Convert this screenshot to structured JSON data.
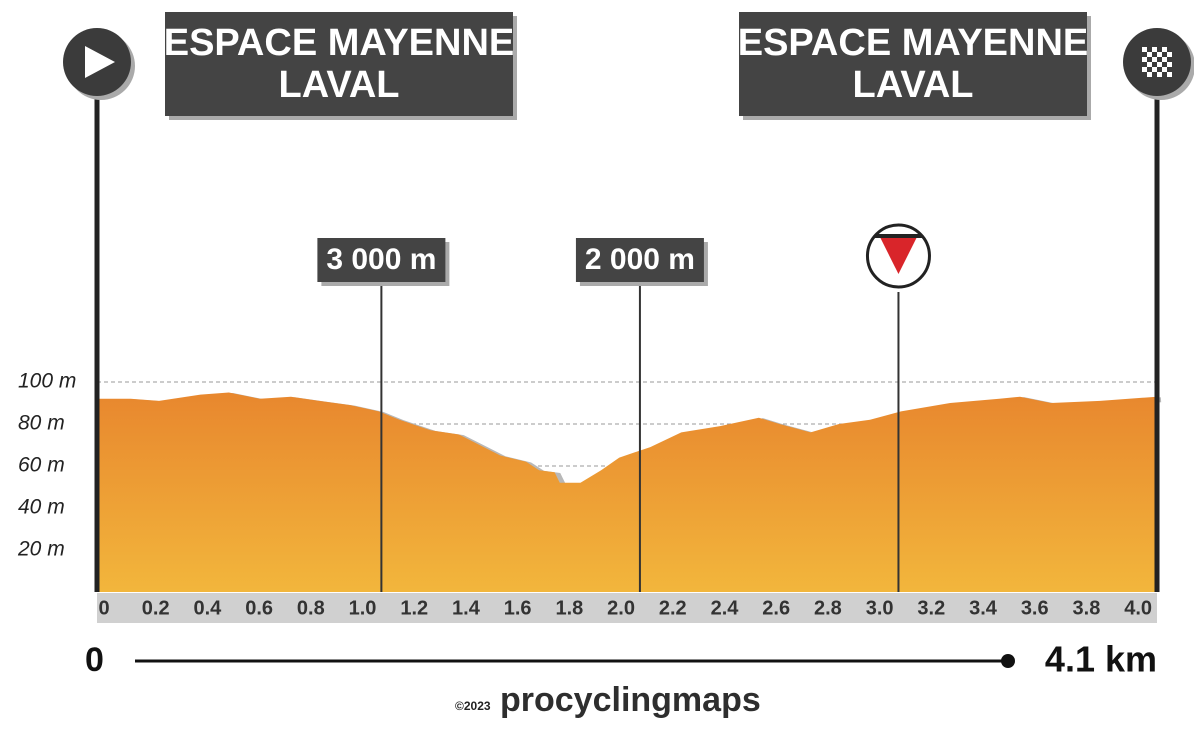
{
  "chart_data": {
    "type": "area",
    "start_label": [
      "ESPACE MAYENNE",
      "LAVAL"
    ],
    "finish_label": [
      "ESPACE MAYENNE",
      "LAVAL"
    ],
    "x": [
      0,
      0.13,
      0.24,
      0.4,
      0.51,
      0.63,
      0.75,
      0.86,
      0.98,
      1.09,
      1.17,
      1.29,
      1.4,
      1.48,
      1.56,
      1.66,
      1.71,
      1.77,
      1.79,
      1.87,
      1.95,
      2.02,
      2.14,
      2.26,
      2.41,
      2.56,
      2.64,
      2.76,
      2.87,
      2.99,
      3.11,
      3.3,
      3.49,
      3.57,
      3.69,
      3.88,
      4.1
    ],
    "values": [
      92,
      92,
      91,
      94,
      95,
      92,
      93,
      91,
      89,
      86,
      82,
      77,
      75,
      70,
      65,
      62,
      58,
      57,
      52,
      52,
      58,
      64,
      69,
      76,
      79,
      83,
      80,
      76,
      80,
      82,
      86,
      90,
      92,
      93,
      90,
      91,
      93
    ],
    "color_top": "#e8872e",
    "color_bottom": "#f2b63c",
    "xlim": [
      0,
      4.1
    ],
    "ylim": [
      0,
      100
    ],
    "xticks": [
      0,
      0.2,
      0.4,
      0.6,
      0.8,
      {
        "value": 1.0,
        "label": "1.0"
      },
      1.2,
      1.4,
      1.6,
      1.8,
      {
        "value": 2.0,
        "label": "2.0"
      },
      2.2,
      2.4,
      2.6,
      2.8,
      {
        "value": 3.0,
        "label": "3.0"
      },
      3.2,
      3.4,
      3.6,
      3.8,
      {
        "value": 4.0,
        "label": "4.0"
      }
    ],
    "yticks": [
      {
        "value": 20,
        "label": "20 m"
      },
      {
        "value": 40,
        "label": "40 m"
      },
      {
        "value": 60,
        "label": "60 m"
      },
      {
        "value": 80,
        "label": "80 m"
      },
      {
        "value": 100,
        "label": "100 m"
      }
    ],
    "grid": true,
    "markers": [
      {
        "x": 1.1,
        "label": "3 000 m"
      },
      {
        "x": 2.1,
        "label": "2 000 m"
      }
    ],
    "flamme_rouge_x": 3.1,
    "distance_label": "4.1 km",
    "credit": {
      "year": "©2023",
      "brand": "procyclingmaps"
    }
  }
}
